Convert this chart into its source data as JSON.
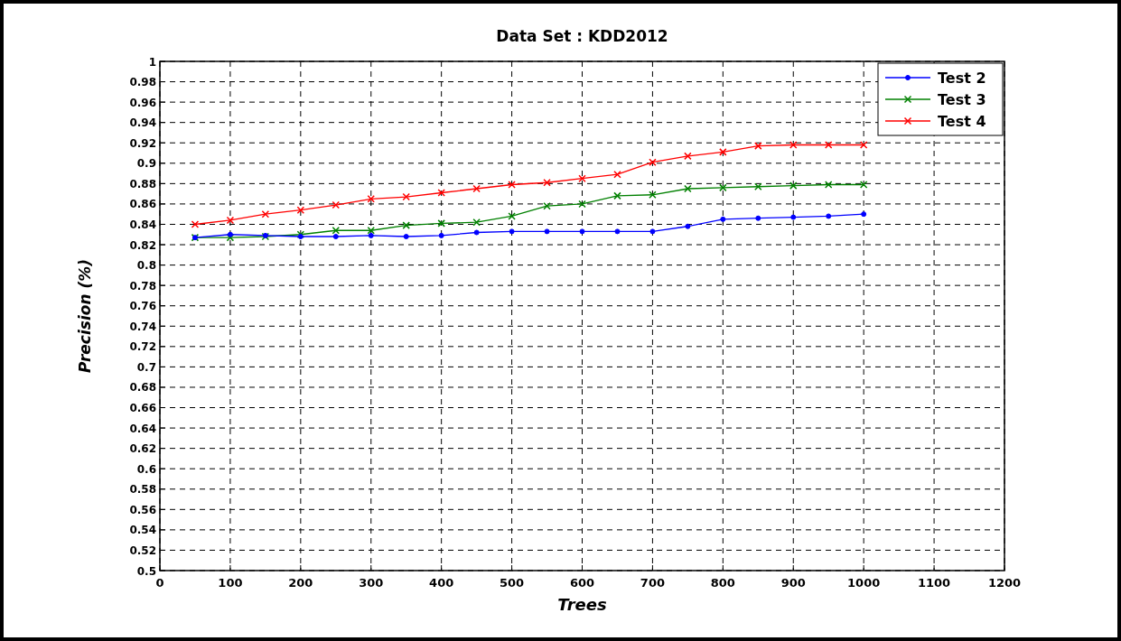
{
  "chart_data": {
    "type": "line",
    "title": "Data Set : KDD2012",
    "xlabel": "Trees",
    "ylabel": "Precision (%)",
    "x": [
      50,
      100,
      150,
      200,
      250,
      300,
      350,
      400,
      450,
      500,
      550,
      600,
      650,
      700,
      750,
      800,
      850,
      900,
      950,
      1000
    ],
    "series": [
      {
        "name": "Test 2",
        "color": "#0000ff",
        "marker": "circle",
        "values": [
          0.827,
          0.83,
          0.829,
          0.828,
          0.828,
          0.829,
          0.828,
          0.829,
          0.832,
          0.833,
          0.833,
          0.833,
          0.833,
          0.833,
          0.838,
          0.845,
          0.846,
          0.847,
          0.848,
          0.85
        ]
      },
      {
        "name": "Test 3",
        "color": "#008000",
        "marker": "cross",
        "values": [
          0.827,
          0.827,
          0.828,
          0.83,
          0.834,
          0.834,
          0.839,
          0.841,
          0.842,
          0.848,
          0.858,
          0.86,
          0.868,
          0.869,
          0.875,
          0.876,
          0.877,
          0.878,
          0.879,
          0.879
        ]
      },
      {
        "name": "Test 4",
        "color": "#ff0000",
        "marker": "cross",
        "values": [
          0.84,
          0.844,
          0.85,
          0.854,
          0.859,
          0.865,
          0.867,
          0.871,
          0.875,
          0.879,
          0.881,
          0.885,
          0.889,
          0.901,
          0.907,
          0.911,
          0.917,
          0.918,
          0.918,
          0.918
        ]
      }
    ],
    "xlim": [
      0,
      1200
    ],
    "xticks": [
      0,
      100,
      200,
      300,
      400,
      500,
      600,
      700,
      800,
      900,
      1000,
      1100,
      1200
    ],
    "ylim": [
      0.5,
      1
    ],
    "yticks": [
      0.5,
      0.52,
      0.54,
      0.56,
      0.58,
      0.6,
      0.62,
      0.64,
      0.66,
      0.68,
      0.7,
      0.72,
      0.74,
      0.76,
      0.78,
      0.8,
      0.82,
      0.84,
      0.86,
      0.88,
      0.9,
      0.92,
      0.94,
      0.96,
      0.98,
      1
    ],
    "grid": true,
    "legend": "top right",
    "line_style": "solid"
  }
}
